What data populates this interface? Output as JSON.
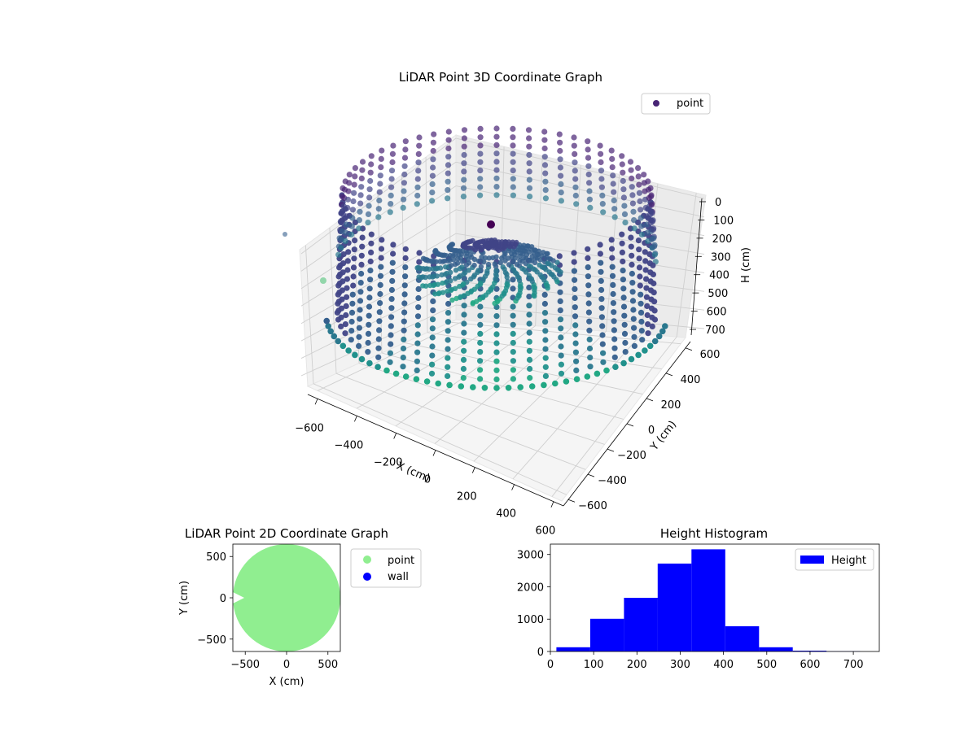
{
  "chart_data": [
    {
      "type": "scatter",
      "subtype": "scatter3d",
      "title": "LiDAR Point 3D Coordinate Graph",
      "xlabel": "X (cm)",
      "ylabel": "Y (cm)",
      "zlabel": "H (cm)",
      "xticks": [
        "−600",
        "−400",
        "−200",
        "0",
        "200",
        "400",
        "600"
      ],
      "yticks": [
        "−600",
        "−400",
        "−200",
        "0",
        "200",
        "400",
        "600"
      ],
      "zticks": [
        "0",
        "100",
        "200",
        "300",
        "400",
        "500",
        "600",
        "700"
      ],
      "xlim": [
        -650,
        650
      ],
      "ylim": [
        -650,
        650
      ],
      "zlim": [
        760,
        -10
      ],
      "z_inverted": true,
      "colormap": "viridis",
      "legend": {
        "position": "top-right",
        "entries": [
          {
            "label": "point",
            "color": "#482475"
          }
        ]
      },
      "grid": true
    },
    {
      "type": "scatter",
      "title": "LiDAR Point 2D Coordinate Graph",
      "xlabel": "X (cm)",
      "ylabel": "Y (cm)",
      "xticks": [
        "−500",
        "0",
        "500"
      ],
      "yticks": [
        "500",
        "0",
        "−500"
      ],
      "xlim": [
        -650,
        650
      ],
      "ylim": [
        -650,
        650
      ],
      "series": [
        {
          "name": "point",
          "color": "#90ee90",
          "shape": "disc",
          "radius": 600
        },
        {
          "name": "wall",
          "color": "#0000ff"
        }
      ],
      "legend": {
        "position": "outside-right"
      }
    },
    {
      "type": "bar",
      "subtype": "histogram",
      "title": "Height Histogram",
      "xticks": [
        "0",
        "100",
        "200",
        "300",
        "400",
        "500",
        "600",
        "700"
      ],
      "yticks": [
        "0",
        "1000",
        "2000",
        "3000"
      ],
      "xlim": [
        0,
        760
      ],
      "ylim": [
        0,
        3320
      ],
      "bins": [
        {
          "x0": 14,
          "x1": 92,
          "count": 130
        },
        {
          "x0": 92,
          "x1": 170,
          "count": 1010
        },
        {
          "x0": 170,
          "x1": 248,
          "count": 1660
        },
        {
          "x0": 248,
          "x1": 326,
          "count": 2720
        },
        {
          "x0": 326,
          "x1": 404,
          "count": 3160
        },
        {
          "x0": 404,
          "x1": 482,
          "count": 780
        },
        {
          "x0": 482,
          "x1": 560,
          "count": 130
        },
        {
          "x0": 560,
          "x1": 638,
          "count": 25
        },
        {
          "x0": 638,
          "x1": 716,
          "count": 8
        }
      ],
      "color": "#0000ff",
      "legend": {
        "position": "top-right",
        "entries": [
          {
            "label": "Height",
            "color": "#0000ff"
          }
        ]
      }
    }
  ]
}
